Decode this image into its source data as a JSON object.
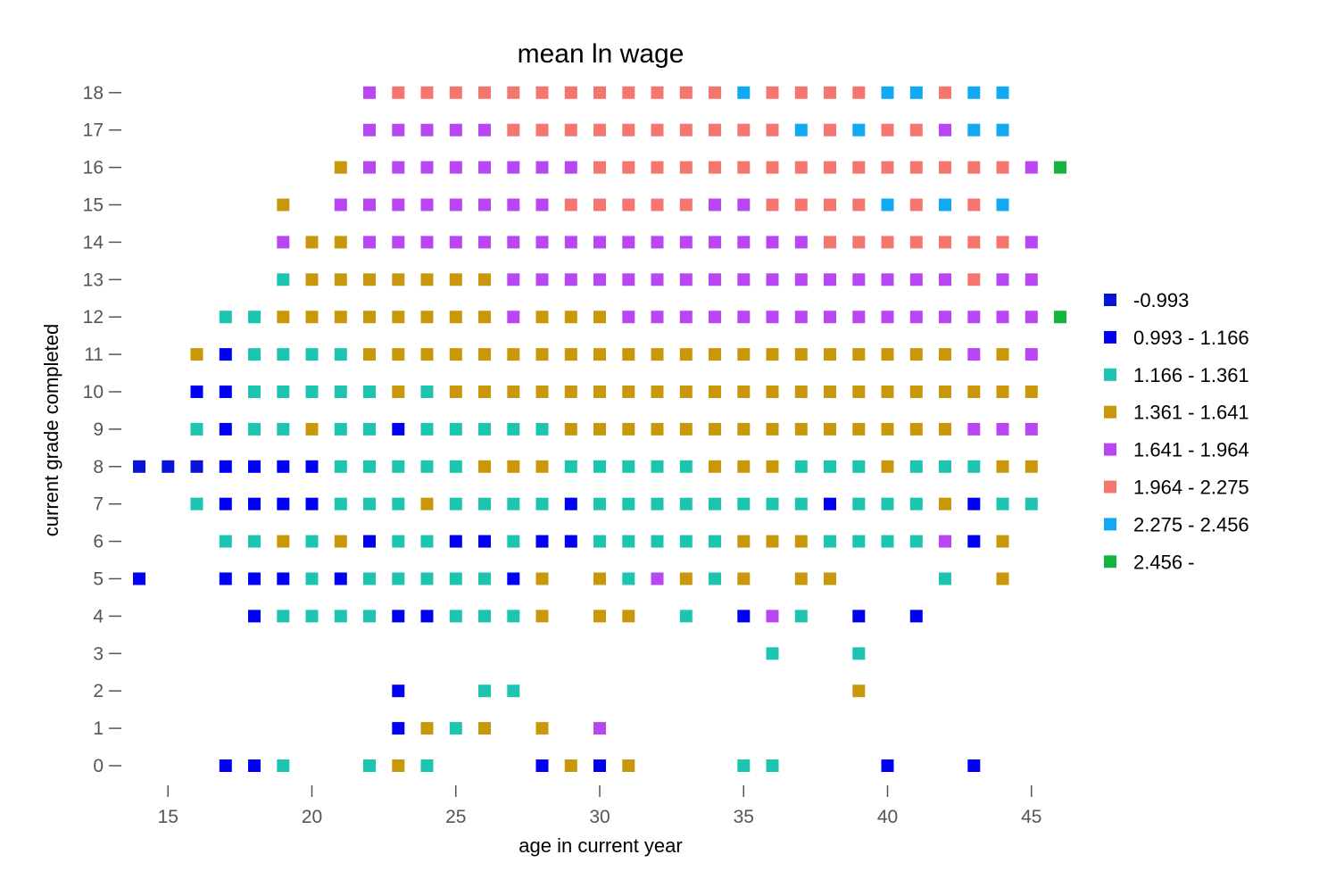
{
  "chart_data": {
    "type": "heatmap",
    "title": "mean ln wage",
    "xlabel": "age in current year",
    "ylabel": "current grade completed",
    "xlim": [
      14,
      46
    ],
    "ylim": [
      0,
      18
    ],
    "xticks": [
      15,
      20,
      25,
      30,
      35,
      40,
      45
    ],
    "yticks": [
      0,
      1,
      2,
      3,
      4,
      5,
      6,
      7,
      8,
      9,
      10,
      11,
      12,
      13,
      14,
      15,
      16,
      17,
      18
    ],
    "grid": false,
    "legend_position": "right",
    "bins": [
      {
        "label": "-0.993",
        "color": "#0a14d8"
      },
      {
        "label": "0.993 - 1.166",
        "color": "#0000f4"
      },
      {
        "label": "1.166 - 1.361",
        "color": "#1dc4b0"
      },
      {
        "label": "1.361 - 1.641",
        "color": "#c9980a"
      },
      {
        "label": "1.641 - 1.964",
        "color": "#b846f2"
      },
      {
        "label": "1.964 - 2.275",
        "color": "#f5766f"
      },
      {
        "label": "2.275 - 2.456",
        "color": "#11a9f2"
      },
      {
        "label": "2.456 -",
        "color": "#14b43c"
      }
    ],
    "rows": [
      {
        "grade": 18,
        "start_age": 22,
        "cells": [
          4,
          5,
          5,
          5,
          5,
          5,
          5,
          5,
          5,
          5,
          5,
          5,
          5,
          6,
          5,
          5,
          5,
          5,
          6,
          6,
          5,
          6,
          6
        ]
      },
      {
        "grade": 17,
        "start_age": 22,
        "cells": [
          4,
          4,
          4,
          4,
          4,
          5,
          5,
          5,
          5,
          5,
          5,
          5,
          5,
          5,
          5,
          6,
          5,
          6,
          5,
          5,
          4,
          6,
          6
        ]
      },
      {
        "grade": 16,
        "start_age": 21,
        "cells": [
          3,
          4,
          4,
          4,
          4,
          4,
          4,
          4,
          4,
          5,
          5,
          5,
          5,
          5,
          5,
          5,
          5,
          5,
          5,
          5,
          5,
          5,
          5,
          5,
          4,
          7
        ]
      },
      {
        "grade": 15,
        "start_age": 19,
        "cells": [
          3,
          null,
          4,
          4,
          4,
          4,
          4,
          4,
          4,
          4,
          5,
          5,
          5,
          5,
          5,
          4,
          4,
          5,
          5,
          5,
          5,
          6,
          5,
          6,
          5,
          6
        ]
      },
      {
        "grade": 14,
        "start_age": 19,
        "cells": [
          4,
          3,
          3,
          4,
          4,
          4,
          4,
          4,
          4,
          4,
          4,
          4,
          4,
          4,
          4,
          4,
          4,
          4,
          4,
          5,
          5,
          5,
          5,
          5,
          5,
          5,
          4
        ]
      },
      {
        "grade": 13,
        "start_age": 19,
        "cells": [
          2,
          3,
          3,
          3,
          3,
          3,
          3,
          3,
          4,
          4,
          4,
          4,
          4,
          4,
          4,
          4,
          4,
          4,
          4,
          4,
          4,
          4,
          4,
          4,
          5,
          4,
          4
        ]
      },
      {
        "grade": 12,
        "start_age": 17,
        "cells": [
          2,
          2,
          3,
          3,
          3,
          3,
          3,
          3,
          3,
          3,
          4,
          3,
          3,
          3,
          4,
          4,
          4,
          4,
          4,
          4,
          4,
          4,
          4,
          4,
          4,
          4,
          4,
          4,
          4,
          7
        ]
      },
      {
        "grade": 11,
        "start_age": 16,
        "cells": [
          3,
          1,
          2,
          2,
          2,
          2,
          3,
          3,
          3,
          3,
          3,
          3,
          3,
          3,
          3,
          3,
          3,
          3,
          3,
          3,
          3,
          3,
          3,
          3,
          3,
          3,
          3,
          4,
          3,
          4
        ]
      },
      {
        "grade": 10,
        "start_age": 16,
        "cells": [
          1,
          1,
          2,
          2,
          2,
          2,
          2,
          3,
          2,
          3,
          3,
          3,
          3,
          3,
          3,
          3,
          3,
          3,
          3,
          3,
          3,
          3,
          3,
          3,
          3,
          3,
          3,
          3,
          3,
          3
        ]
      },
      {
        "grade": 9,
        "start_age": 16,
        "cells": [
          2,
          1,
          2,
          2,
          3,
          2,
          2,
          1,
          2,
          2,
          2,
          2,
          2,
          3,
          3,
          3,
          3,
          3,
          3,
          3,
          3,
          3,
          3,
          3,
          3,
          3,
          3,
          4,
          4,
          4
        ]
      },
      {
        "grade": 8,
        "start_age": 14,
        "cells": [
          0,
          0,
          0,
          1,
          1,
          1,
          1,
          2,
          2,
          2,
          2,
          2,
          3,
          3,
          3,
          2,
          2,
          2,
          2,
          2,
          3,
          3,
          3,
          2,
          2,
          2,
          3,
          2,
          2,
          2,
          3,
          3
        ]
      },
      {
        "grade": 7,
        "start_age": 16,
        "cells": [
          2,
          1,
          1,
          1,
          1,
          2,
          2,
          2,
          3,
          2,
          2,
          2,
          2,
          1,
          2,
          2,
          2,
          2,
          2,
          2,
          2,
          2,
          1,
          2,
          2,
          2,
          3,
          1,
          2,
          2
        ]
      },
      {
        "grade": 6,
        "start_age": 17,
        "cells": [
          2,
          2,
          3,
          2,
          3,
          1,
          2,
          2,
          1,
          1,
          2,
          1,
          1,
          2,
          2,
          2,
          2,
          2,
          3,
          3,
          3,
          2,
          2,
          2,
          2,
          4,
          1,
          3
        ]
      },
      {
        "grade": 5,
        "start_age": 14,
        "cells": [
          1,
          null,
          null,
          1,
          1,
          1,
          2,
          1,
          2,
          2,
          2,
          2,
          2,
          1,
          3,
          null,
          3,
          2,
          4,
          3,
          2,
          3,
          null,
          3,
          3,
          null,
          null,
          null,
          2,
          null,
          3
        ]
      },
      {
        "grade": 4,
        "start_age": 18,
        "cells": [
          1,
          2,
          2,
          2,
          2,
          1,
          1,
          2,
          2,
          2,
          3,
          null,
          3,
          3,
          null,
          2,
          null,
          1,
          4,
          2,
          null,
          1,
          null,
          1
        ]
      },
      {
        "grade": 3,
        "start_age": 36,
        "cells": [
          2,
          null,
          null,
          2
        ]
      },
      {
        "grade": 2,
        "start_age": 23,
        "cells": [
          1,
          null,
          null,
          2,
          2,
          null,
          null,
          null,
          null,
          null,
          null,
          null,
          null,
          null,
          null,
          null,
          3
        ]
      },
      {
        "grade": 1,
        "start_age": 23,
        "cells": [
          1,
          3,
          2,
          3,
          null,
          3,
          null,
          4
        ]
      },
      {
        "grade": 0,
        "start_age": 17,
        "cells": [
          1,
          1,
          2,
          null,
          null,
          2,
          3,
          2,
          null,
          null,
          null,
          1,
          3,
          1,
          3,
          null,
          null,
          null,
          2,
          2,
          null,
          null,
          null,
          1,
          null,
          null,
          1
        ]
      }
    ]
  }
}
